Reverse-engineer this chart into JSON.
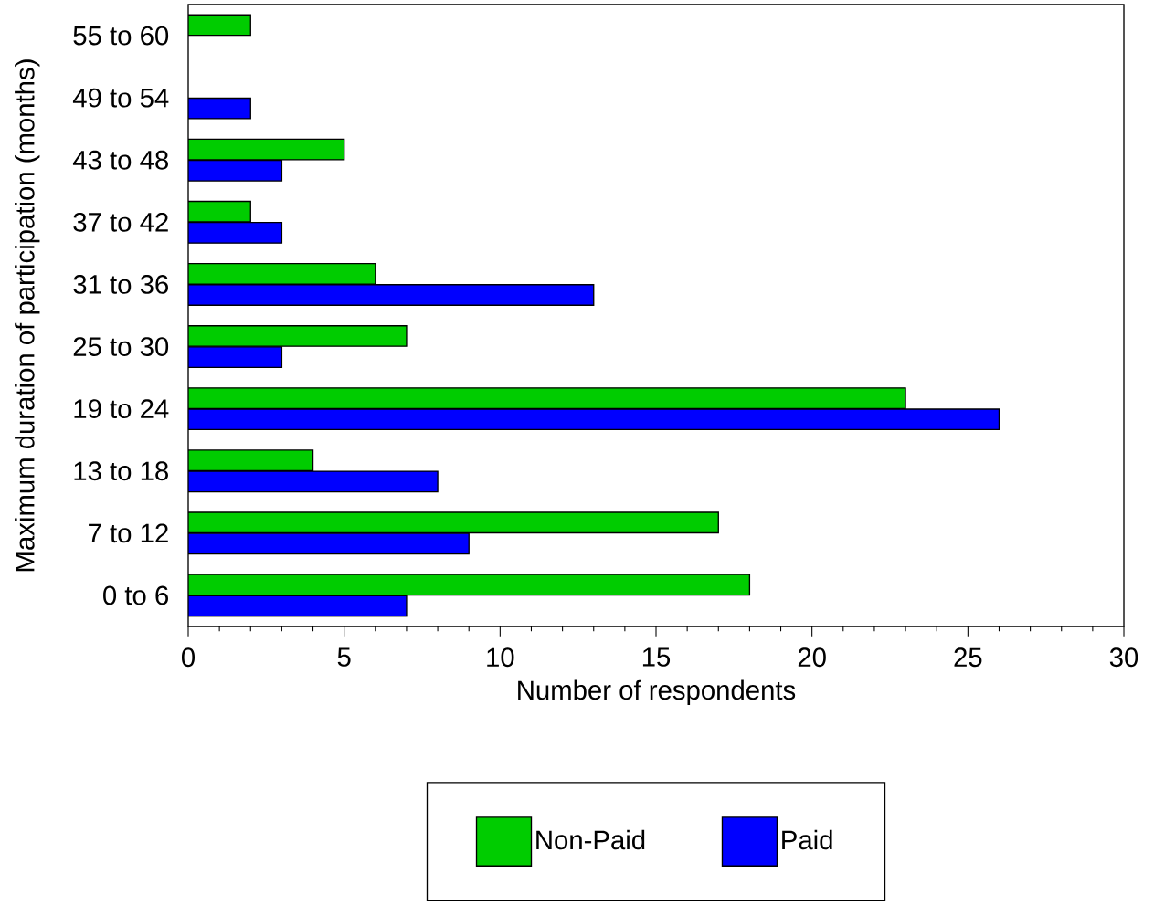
{
  "chart_data": {
    "type": "bar",
    "orientation": "horizontal",
    "xlabel": "Number of respondents",
    "ylabel": "Maximum duration of participation (months)",
    "categories": [
      "55 to 60",
      "49 to 54",
      "43 to 48",
      "37 to 42",
      "31 to 36",
      "25 to 30",
      "19 to 24",
      "13 to 18",
      "7 to 12",
      "0 to 6"
    ],
    "series": [
      {
        "name": "Non-Paid",
        "color": "#00cc00",
        "values": [
          2,
          null,
          5,
          2,
          6,
          7,
          23,
          4,
          17,
          18
        ]
      },
      {
        "name": "Paid",
        "color": "#0000ff",
        "values": [
          null,
          2,
          3,
          3,
          13,
          3,
          26,
          8,
          9,
          7
        ]
      }
    ],
    "xlim": [
      0,
      30
    ],
    "xticks": [
      0,
      5,
      10,
      15,
      20,
      25,
      30
    ],
    "grid": false,
    "legend": "bottom"
  }
}
